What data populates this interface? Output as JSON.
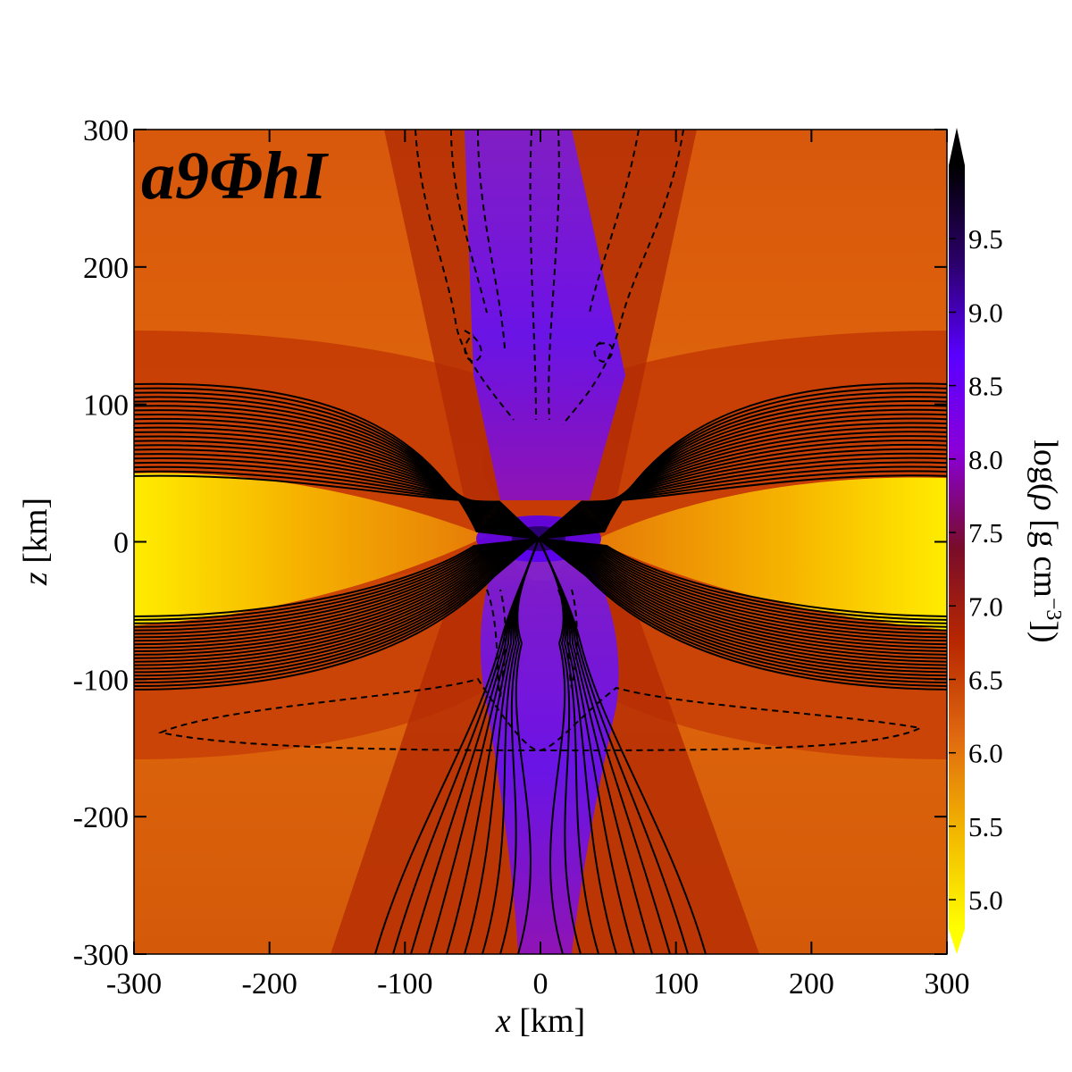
{
  "chart_data": {
    "type": "heatmap",
    "panel_label": "a9ΦhI",
    "xlabel": {
      "var": "x",
      "unit": " [km]"
    },
    "ylabel": {
      "var": "z",
      "unit": " [km]"
    },
    "colorbar_label": {
      "prefix": "log(",
      "var": "ρ",
      "unit": " [g cm",
      "exp": "−3",
      "suffix": "])"
    },
    "xlim": [
      -300,
      300
    ],
    "ylim": [
      -300,
      300
    ],
    "x_ticks": [
      -300,
      -200,
      -100,
      0,
      100,
      200,
      300
    ],
    "y_ticks": [
      -300,
      -200,
      -100,
      0,
      100,
      200,
      300
    ],
    "x_tick_labels": [
      "-300",
      "-200",
      "-100",
      "0",
      "100",
      "200",
      "300"
    ],
    "y_tick_labels": [
      "-300",
      "-200",
      "-100",
      "0",
      "100",
      "200",
      "300"
    ],
    "colorbar_range": [
      4.8,
      10.0
    ],
    "colorbar_ticks": [
      5.0,
      5.5,
      6.0,
      6.5,
      7.0,
      7.5,
      8.0,
      8.5,
      9.0,
      9.5
    ],
    "colorbar_tick_labels": [
      "5.0",
      "5.5",
      "6.0",
      "6.5",
      "7.0",
      "7.5",
      "8.0",
      "8.5",
      "9.0",
      "9.5"
    ],
    "colormap": [
      "#ffff00",
      "#f2b800",
      "#e06a10",
      "#b82800",
      "#780c2a",
      "#8a00d8",
      "#5a00ff",
      "#2a0068",
      "#000000"
    ],
    "colorbar_extend": "both",
    "field": "log rest-mass density",
    "overlays": "black contours: solid and dashed magnetic field lines"
  }
}
